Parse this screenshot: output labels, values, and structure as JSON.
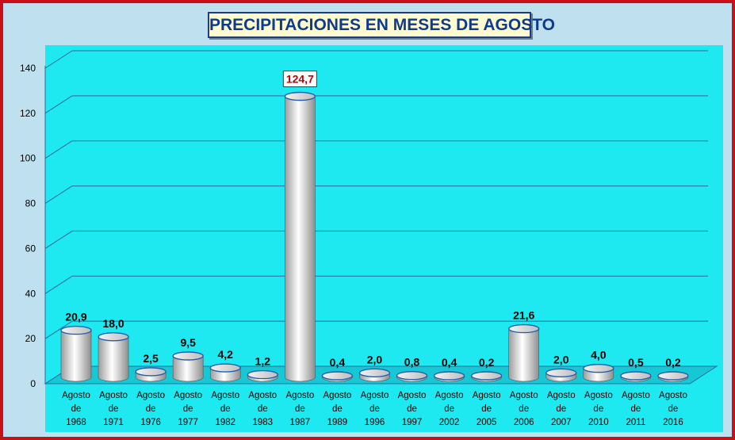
{
  "title": "PRECIPITACIONES EN MESES DE AGOSTO",
  "chart_data": {
    "type": "bar",
    "title": "PRECIPITACIONES EN MESES DE AGOSTO",
    "categories": [
      [
        "Agosto",
        "de",
        "1968"
      ],
      [
        "Agosto",
        "de",
        "1971"
      ],
      [
        "Agosto",
        "de",
        "1976"
      ],
      [
        "Agosto",
        "de",
        "1977"
      ],
      [
        "Agosto",
        "de",
        "1982"
      ],
      [
        "Agosto",
        "de",
        "1983"
      ],
      [
        "Agosto",
        "de",
        "1987"
      ],
      [
        "Agosto",
        "de",
        "1989"
      ],
      [
        "Agosto",
        "de",
        "1996"
      ],
      [
        "Agosto",
        "de",
        "1997"
      ],
      [
        "Agosto",
        "de",
        "2002"
      ],
      [
        "Agosto",
        "de",
        "2005"
      ],
      [
        "Agosto",
        "de",
        "2006"
      ],
      [
        "Agosto",
        "de",
        "2007"
      ],
      [
        "Agosto",
        "de",
        "2010"
      ],
      [
        "Agosto",
        "de",
        "2011"
      ],
      [
        "Agosto",
        "de",
        "2016"
      ]
    ],
    "values": [
      20.9,
      18.0,
      2.5,
      9.5,
      4.2,
      1.2,
      124.7,
      0.4,
      2.0,
      0.8,
      0.4,
      0.2,
      21.6,
      2.0,
      4.0,
      0.5,
      0.2
    ],
    "value_labels": [
      "20,9",
      "18,0",
      "2,5",
      "9,5",
      "4,2",
      "1,2",
      "124,7",
      "0,4",
      "2,0",
      "0,8",
      "0,4",
      "0,2",
      "21,6",
      "2,0",
      "4,0",
      "0,5",
      "0,2"
    ],
    "highlight_index": 6,
    "yticks": [
      "0",
      "20",
      "40",
      "60",
      "80",
      "100",
      "120",
      "140"
    ],
    "ylim": [
      0,
      140
    ],
    "xlabel": "",
    "ylabel": "",
    "grid": true,
    "legend": "none",
    "colors": {
      "frame": "#c8101a",
      "plot_background": "#1ee8f0",
      "bar": "#d9d9d9",
      "bar_outline": "#1f5fb0",
      "gridline": "#2d6aa0",
      "highlight_label": "#c00000",
      "title_text": "#0f3b8c",
      "title_background": "#fffbd0"
    }
  }
}
